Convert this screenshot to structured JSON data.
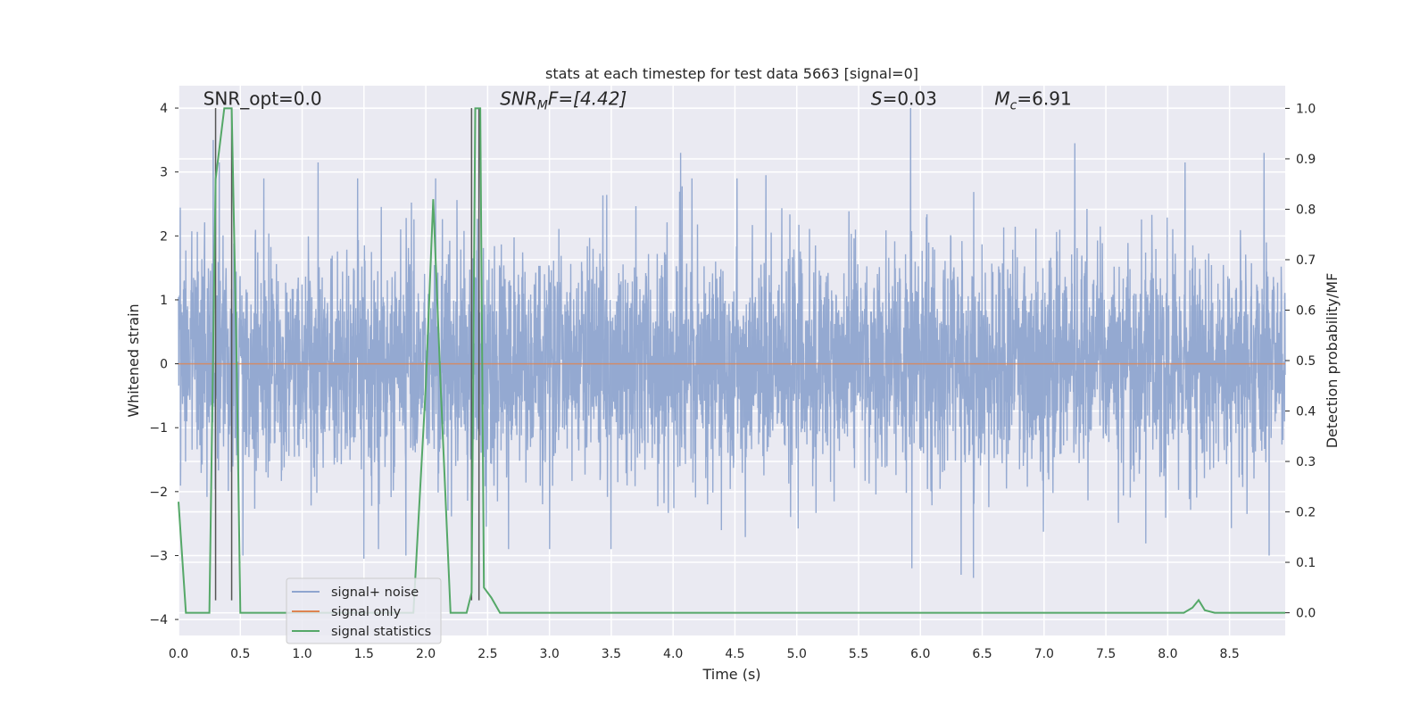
{
  "chart_data": {
    "type": "line",
    "title": "stats at each timestep for test data 5663 [signal=0]",
    "xlabel": "Time (s)",
    "ylabel_left": "Whitened strain",
    "ylabel_right": "Detection probability/MF",
    "xlim": [
      0.0,
      8.95
    ],
    "ylim_left": [
      -4.25,
      4.35
    ],
    "ylim_right": [
      -0.045,
      1.045
    ],
    "x_ticks": [
      "0.0",
      "0.5",
      "1.0",
      "1.5",
      "2.0",
      "2.5",
      "3.0",
      "3.5",
      "4.0",
      "4.5",
      "5.0",
      "5.5",
      "6.0",
      "6.5",
      "7.0",
      "7.5",
      "8.0",
      "8.5"
    ],
    "x_tick_values": [
      0.0,
      0.5,
      1.0,
      1.5,
      2.0,
      2.5,
      3.0,
      3.5,
      4.0,
      4.5,
      5.0,
      5.5,
      6.0,
      6.5,
      7.0,
      7.5,
      8.0,
      8.5
    ],
    "y_left_ticks": [
      "4",
      "3",
      "2",
      "1",
      "0",
      "−1",
      "−2",
      "−3",
      "−4"
    ],
    "y_left_tick_values": [
      4,
      3,
      2,
      1,
      0,
      -1,
      -2,
      -3,
      -4
    ],
    "y_right_ticks": [
      "1.0",
      "0.9",
      "0.8",
      "0.7",
      "0.6",
      "0.5",
      "0.4",
      "0.3",
      "0.2",
      "0.1",
      "0.0"
    ],
    "y_right_tick_values": [
      1.0,
      0.9,
      0.8,
      0.7,
      0.6,
      0.5,
      0.4,
      0.3,
      0.2,
      0.1,
      0.0
    ],
    "annotations": {
      "snr_opt": "SNR_opt=0.0",
      "snr_mf_main": "SNR",
      "snr_mf_sub": "M",
      "snr_mf_rest": "F=[4.42]",
      "s_var": "S",
      "s_rest": "=0.03",
      "mc_main": "M",
      "mc_sub": "c",
      "mc_rest": "=6.91"
    },
    "annotation_x": {
      "snr_opt": 0.2,
      "snr_mf": 2.6,
      "s": 5.6,
      "mc": 6.6
    },
    "annotation_y": 4.05,
    "legend": [
      "signal+ noise",
      "signal only",
      "signal statistics"
    ],
    "legend_position": "lower-left",
    "vlines_x": [
      0.3,
      0.43,
      2.37,
      2.43
    ],
    "vline_range": [
      -3.7,
      4.0
    ],
    "series": [
      {
        "name": "signal+ noise",
        "color": "#8fa5cf",
        "kind": "noise",
        "n_samples": 4400,
        "seed": 5663,
        "std": 0.88,
        "peaks": [
          {
            "x": 0.28,
            "y": 3.5
          },
          {
            "x": 0.33,
            "y": 3.15
          },
          {
            "x": 1.13,
            "y": 3.15
          },
          {
            "x": 1.5,
            "y": -3.05
          },
          {
            "x": 1.84,
            "y": -3.0
          },
          {
            "x": 4.06,
            "y": 3.3
          },
          {
            "x": 4.75,
            "y": 2.95
          },
          {
            "x": 5.92,
            "y": 4.0
          },
          {
            "x": 5.93,
            "y": -3.2
          },
          {
            "x": 6.33,
            "y": -3.3
          },
          {
            "x": 6.43,
            "y": -3.35
          },
          {
            "x": 7.25,
            "y": 3.45
          },
          {
            "x": 8.14,
            "y": 3.15
          },
          {
            "x": 8.78,
            "y": 3.3
          },
          {
            "x": 8.82,
            "y": -3.0
          },
          {
            "x": 0.52,
            "y": -3.0
          },
          {
            "x": 3.0,
            "y": -2.9
          },
          {
            "x": 2.08,
            "y": 2.9
          }
        ]
      },
      {
        "name": "signal only",
        "color": "#dd8452",
        "kind": "flat",
        "values_x": [
          0.0,
          8.95
        ],
        "values_y": [
          0.0,
          0.0
        ]
      },
      {
        "name": "signal statistics",
        "color": "#55a868",
        "axis": "right",
        "x": [
          0.0,
          0.06,
          0.13,
          0.25,
          0.3,
          0.37,
          0.4,
          0.43,
          0.47,
          0.5,
          0.53,
          1.9,
          2.0,
          2.06,
          2.12,
          2.2,
          2.33,
          2.37,
          2.4,
          2.44,
          2.47,
          2.53,
          2.6,
          8.13,
          8.2,
          8.25,
          8.3,
          8.38,
          8.95
        ],
        "y": [
          0.22,
          0.0,
          0.0,
          0.0,
          0.86,
          1.0,
          1.0,
          1.0,
          0.5,
          0.0,
          0.0,
          0.0,
          0.45,
          0.82,
          0.45,
          0.0,
          0.0,
          0.04,
          1.0,
          1.0,
          0.05,
          0.03,
          0.0,
          0.0,
          0.01,
          0.025,
          0.005,
          0.0,
          0.0
        ]
      }
    ]
  }
}
